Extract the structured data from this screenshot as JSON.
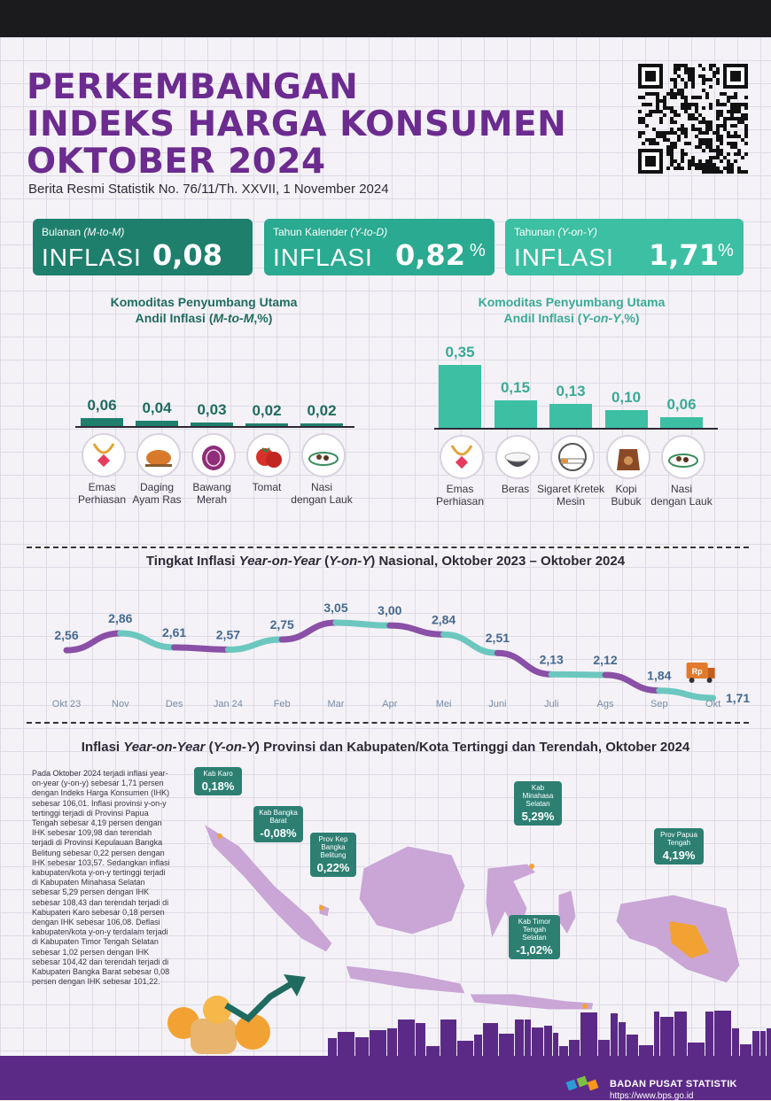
{
  "header": {
    "title_lines": [
      "PERKEMBANGAN",
      "INDEKS HARGA KONSUMEN",
      "OKTOBER 2024"
    ],
    "subtitle": "Berita Resmi Statistik No. 76/11/Th. XXVII, 1 November 2024"
  },
  "cards": [
    {
      "label_main": "Bulanan ",
      "label_em": "(M-to-M)",
      "keyword": "INFLASI",
      "value": "0,08",
      "unit": "%"
    },
    {
      "label_main": "Tahun Kalender ",
      "label_em": "(Y-to-D)",
      "keyword": "INFLASI",
      "value": "0,82",
      "unit": "%"
    },
    {
      "label_main": "Tahunan ",
      "label_em": "(Y-on-Y)",
      "keyword": "INFLASI",
      "value": "1,71",
      "unit": "%"
    }
  ],
  "colors": {
    "purple": "#6b2b8f",
    "teal_dark": "#1f7f6d",
    "teal": "#2aaa90",
    "teal_light": "#3cbfa3",
    "line_teal": "#6cc7be",
    "line_purple": "#8a4fa6",
    "label_blue": "#45698f"
  },
  "bar_mtm": {
    "title_line1": "Komoditas Penyumbang Utama",
    "title_line2_pre": "Andil Inflasi (",
    "title_line2_em": "M-to-M",
    "title_line2_post": ",%)"
  },
  "bar_yoy": {
    "title_line1": "Komoditas Penyumbang Utama",
    "title_line2_pre": "Andil Inflasi (",
    "title_line2_em": "Y-on-Y",
    "title_line2_post": ",%)"
  },
  "line_chart_title": {
    "pre": "Tingkat Inflasi ",
    "em1": "Year-on-Year",
    "mid": " (",
    "em2": "Y-on-Y",
    "post": ") Nasional, Oktober 2023 – Oktober 2024"
  },
  "map_title": {
    "pre": "Inflasi ",
    "em1": "Year-on-Year",
    "mid": " (",
    "em2": "Y-on-Y",
    "post": ") Provinsi dan Kabupaten/Kota Tertinggi dan Terendah, Oktober 2024"
  },
  "paragraph": "Pada Oktober 2024 terjadi inflasi year-on-year (y-on-y) sebesar 1,71 persen dengan Indeks Harga Konsumen (IHK) sebesar 106,01. Inflasi provinsi y-on-y tertinggi terjadi di Provinsi Papua Tengah sebesar 4,19 persen dengan IHK sebesar 109,98 dan terendah terjadi di Provinsi Kepulauan Bangka Belitung sebesar 0,22 persen dengan IHK sebesar 103,57. Sedangkan inflasi kabupaten/kota y-on-y tertinggi terjadi di Kabupaten Minahasa Selatan sebesar 5,29 persen dengan IHK sebesar 108,43 dan terendah terjadi di Kabupaten Karo sebesar 0,18 persen dengan IHK sebesar 106,08. Deflasi kabupaten/kota y-on-y terdalam terjadi di Kabupaten Timor Tengah Selatan sebesar 1,02 persen dengan IHK sebesar 104,42 dan terendah terjadi di Kabupaten Bangka Barat sebesar 0,08 persen dengan IHK sebesar 101,22.",
  "callouts": [
    {
      "label": "Kab Karo",
      "value": "0,18%"
    },
    {
      "label": "Kab Bangka Barat",
      "value": "-0,08%"
    },
    {
      "label": "Prov Kep Bangka Belitung",
      "value": "0,22%"
    },
    {
      "label": "Kab Minahasa Selatan",
      "value": "5,29%"
    },
    {
      "label": "Prov Papua Tengah",
      "value": "4,19%"
    },
    {
      "label": "Kab Timor Tengah Selatan",
      "value": "-1,02%"
    }
  ],
  "footer": {
    "org": "BADAN PUSAT STATISTIK",
    "url": "https://www.bps.go.id",
    "truck_label": "Rp"
  },
  "chart_data": [
    {
      "type": "bar",
      "categories": [
        "Emas Perhiasan",
        "Daging Ayam Ras",
        "Bawang Merah",
        "Tomat",
        "Nasi dengan Lauk"
      ],
      "category_lines": [
        [
          "Emas",
          "Perhiasan"
        ],
        [
          "Daging",
          "Ayam Ras"
        ],
        [
          "Bawang",
          "Merah"
        ],
        [
          "Tomat"
        ],
        [
          "Nasi",
          "dengan Lauk"
        ]
      ],
      "values": [
        0.06,
        0.04,
        0.03,
        0.02,
        0.02
      ],
      "value_labels": [
        "0,06",
        "0,04",
        "0,03",
        "0,02",
        "0,02"
      ],
      "icons": [
        "jewelry-icon",
        "chicken-icon",
        "onion-icon",
        "tomato-icon",
        "rice-dish-icon"
      ],
      "title": "Komoditas Penyumbang Utama Andil Inflasi (M-to-M,%)"
    },
    {
      "type": "bar",
      "categories": [
        "Emas Perhiasan",
        "Beras",
        "Sigaret Kretek Mesin",
        "Kopi Bubuk",
        "Nasi dengan Lauk"
      ],
      "category_lines": [
        [
          "Emas",
          "Perhiasan"
        ],
        [
          "Beras"
        ],
        [
          "Sigaret Kretek",
          "Mesin"
        ],
        [
          "Kopi",
          "Bubuk"
        ],
        [
          "Nasi",
          "dengan Lauk"
        ]
      ],
      "values": [
        0.35,
        0.15,
        0.13,
        0.1,
        0.06
      ],
      "value_labels": [
        "0,35",
        "0,15",
        "0,13",
        "0,10",
        "0,06"
      ],
      "icons": [
        "jewelry-icon",
        "rice-bowl-icon",
        "cigarette-icon",
        "coffee-sack-icon",
        "rice-dish-icon"
      ],
      "title": "Komoditas Penyumbang Utama Andil Inflasi (Y-on-Y,%)"
    },
    {
      "type": "line",
      "x": [
        "Okt 23",
        "Nov",
        "Des",
        "Jan 24",
        "Feb",
        "Mar",
        "Apr",
        "Mei",
        "Juni",
        "Juli",
        "Ags",
        "Sep",
        "Okt"
      ],
      "values": [
        2.56,
        2.86,
        2.61,
        2.57,
        2.75,
        3.05,
        3.0,
        2.84,
        2.51,
        2.13,
        2.12,
        1.84,
        1.71
      ],
      "value_labels": [
        "2,56",
        "2,86",
        "2,61",
        "2,57",
        "2,75",
        "3,05",
        "3,00",
        "2,84",
        "2,51",
        "2,13",
        "2,12",
        "1,84",
        "1,71"
      ],
      "title": "Tingkat Inflasi Year-on-Year (Y-on-Y) Nasional, Oktober 2023 – Oktober 2024"
    }
  ]
}
